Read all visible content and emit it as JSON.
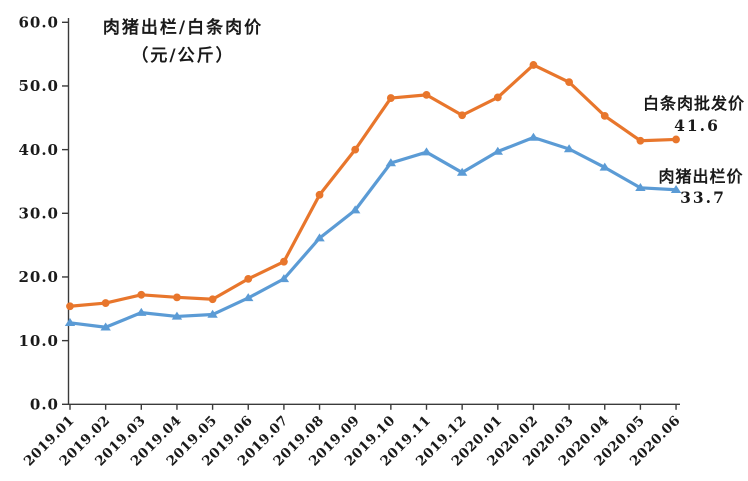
{
  "chart": {
    "title_line1": "肉猪出栏/白条肉价",
    "title_line2": "（元/公斤）"
  },
  "chart_data": {
    "type": "line",
    "title": "肉猪出栏/白条肉价（元/公斤）",
    "categories": [
      "2019.01",
      "2019.02",
      "2019.03",
      "2019.04",
      "2019.05",
      "2019.06",
      "2019.07",
      "2019.08",
      "2019.09",
      "2019.10",
      "2019.11",
      "2019.12",
      "2020.01",
      "2020.02",
      "2020.03",
      "2020.04",
      "2020.05",
      "2020.06"
    ],
    "series": [
      {
        "name": "白条肉批发价",
        "color": "#E8762C",
        "marker": "circle",
        "end_label": "41.6",
        "values": [
          15.4,
          15.9,
          17.2,
          16.8,
          16.5,
          19.7,
          22.4,
          32.9,
          40.0,
          48.1,
          48.6,
          45.4,
          48.2,
          53.3,
          50.6,
          45.3,
          41.4,
          41.6
        ]
      },
      {
        "name": "肉猪出栏价",
        "color": "#5B9BD5",
        "marker": "triangle",
        "end_label": "33.7",
        "values": [
          12.8,
          12.1,
          14.4,
          13.8,
          14.1,
          16.7,
          19.7,
          26.1,
          30.5,
          37.9,
          39.6,
          36.4,
          39.7,
          41.9,
          40.1,
          37.2,
          34.0,
          33.7
        ]
      }
    ],
    "y_ticks": [
      0,
      10,
      20,
      30,
      40,
      50,
      60
    ],
    "ylim": [
      0,
      60
    ],
    "xlabel": "",
    "ylabel": "",
    "grid": false,
    "legend_position": "right-annotations",
    "axis_color": "#3a3a3a"
  }
}
